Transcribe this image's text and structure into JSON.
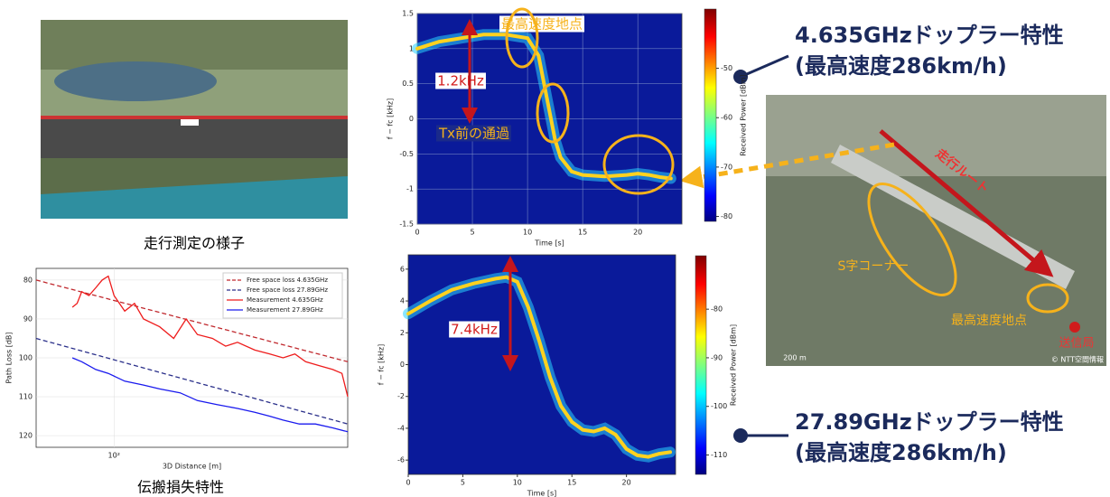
{
  "chart_data": [
    {
      "type": "line",
      "xlabel": "3D Distance [m]",
      "ylabel": "Path Loss [dB]",
      "xlog": true,
      "xlim": [
        50,
        800
      ],
      "ylim": [
        77,
        123
      ],
      "y_inverted": true,
      "xticks": [
        {
          "value": 100,
          "label": "10²"
        }
      ],
      "yticks": [
        80,
        90,
        100,
        110,
        120
      ],
      "grid": true,
      "legend": "upper right",
      "series": [
        {
          "name": "Free space loss 4.635GHz",
          "color": "#c0282d",
          "dash": true,
          "x": [
            50,
            800
          ],
          "values": [
            80,
            101
          ]
        },
        {
          "name": "Free space loss 27.89GHz",
          "color": "#2a2f8a",
          "dash": true,
          "x": [
            50,
            800
          ],
          "values": [
            95,
            117
          ]
        },
        {
          "name": "Measurement 4.635GHz",
          "color": "#ee1c1c",
          "dash": false,
          "x": [
            69,
            72,
            75,
            80,
            85,
            90,
            95,
            100,
            110,
            120,
            130,
            150,
            170,
            190,
            210,
            240,
            270,
            300,
            350,
            400,
            450,
            500,
            550,
            620,
            700,
            760,
            800
          ],
          "values": [
            87,
            86,
            83,
            84,
            82,
            80,
            79,
            84,
            88,
            86,
            90,
            92,
            95,
            90,
            94,
            95,
            97,
            96,
            98,
            99,
            100,
            99,
            101,
            102,
            103,
            104,
            110
          ]
        },
        {
          "name": "Measurement 27.89GHz",
          "color": "#1a1aee",
          "dash": false,
          "x": [
            69,
            75,
            85,
            95,
            110,
            130,
            150,
            180,
            210,
            250,
            300,
            350,
            400,
            450,
            520,
            600,
            700,
            800
          ],
          "values": [
            100,
            101,
            103,
            104,
            106,
            107,
            108,
            109,
            111,
            112,
            113,
            114,
            115,
            116,
            117,
            117,
            118,
            119
          ]
        }
      ]
    },
    {
      "type": "spectrogram",
      "xlabel": "Time [s]",
      "ylabel": "f − fc [kHz]",
      "xlim": [
        0,
        24
      ],
      "ylim": [
        -1.5,
        1.5
      ],
      "xticks": [
        0,
        5,
        10,
        15,
        20
      ],
      "yticks": [
        -1.5,
        -1.0,
        -0.5,
        0.0,
        0.5,
        1.0,
        1.5
      ],
      "grid": true,
      "clim": [
        -81,
        -38
      ],
      "cticks": [
        -50,
        -60,
        -70,
        -80
      ],
      "clabel": "Received Power [dBm]",
      "color": "#ffd21f",
      "x": [
        0,
        2,
        4,
        6,
        8,
        10,
        11,
        11.5,
        12,
        12.5,
        13,
        14,
        15,
        17,
        19,
        20,
        21,
        22,
        23
      ],
      "values": [
        1.0,
        1.1,
        1.15,
        1.2,
        1.2,
        1.15,
        0.9,
        0.5,
        0.1,
        -0.3,
        -0.55,
        -0.75,
        -0.8,
        -0.82,
        -0.8,
        -0.78,
        -0.8,
        -0.83,
        -0.85
      ],
      "annotations": [
        "最高速度地点",
        "1.2kHz",
        "Tx前の通過"
      ]
    },
    {
      "type": "spectrogram",
      "xlabel": "Time [s]",
      "ylabel": "f − fc [kHz]",
      "xlim": [
        0,
        24.5
      ],
      "ylim": [
        -6.9,
        6.9
      ],
      "xticks": [
        0,
        5,
        10,
        15,
        20
      ],
      "yticks": [
        -6,
        -4,
        -2,
        0,
        2,
        4,
        6
      ],
      "grid": false,
      "clim": [
        -114,
        -69
      ],
      "cticks": [
        -80,
        -90,
        -100,
        -110
      ],
      "clabel": "Received Power [dBm]",
      "color": "#ffd21f",
      "x": [
        0,
        2,
        4,
        6,
        8,
        9,
        10,
        11,
        12,
        13,
        14,
        15,
        16,
        17,
        18,
        19,
        20,
        21,
        22,
        23,
        24
      ],
      "values": [
        3.2,
        4.0,
        4.7,
        5.1,
        5.4,
        5.5,
        5.2,
        3.6,
        1.5,
        -0.8,
        -2.6,
        -3.6,
        -4.1,
        -4.2,
        -4.0,
        -4.4,
        -5.3,
        -5.7,
        -5.8,
        -5.6,
        -5.5
      ],
      "annotations": [
        "7.4kHz"
      ]
    }
  ],
  "captions": {
    "photo": "走行測定の様子",
    "path_loss": "伝搬損失特性"
  },
  "headings": [
    {
      "title": "4.635GHzドップラー特性",
      "subtitle": "(最高速度286km/h)"
    },
    {
      "title": "27.89GHzドップラー特性",
      "subtitle": "(最高速度286km/h)"
    }
  ],
  "map": {
    "route": "走行ルート",
    "corner": "S字コーナー",
    "top_speed": "最高速度地点",
    "tx": "送信局",
    "credit": "© NTT空間情報",
    "scale": "200 m"
  }
}
